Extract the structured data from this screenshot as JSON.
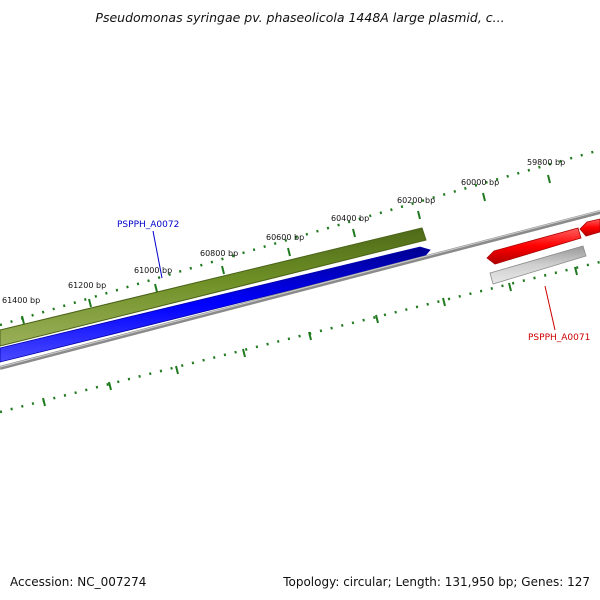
{
  "header": {
    "title": "Pseudomonas syringae pv. phaseolicola 1448A large plasmid, c..."
  },
  "footer": {
    "accession_label": "Accession:",
    "accession_value": "NC_007274",
    "topology_label": "Topology:",
    "topology_value": "circular;",
    "length_label": "Length:",
    "length_value": "131,950 bp;",
    "genes_label": "Genes:",
    "genes_value": "127"
  },
  "ruler": {
    "tick_unit": "bp",
    "labels": [
      "59800 bp",
      "60000 bp",
      "60200 bp",
      "60400 bp",
      "60600 bp",
      "60800 bp",
      "61000 bp",
      "61200 bp",
      "61400 bp"
    ]
  },
  "genes": [
    {
      "id": "PSPPH_A0072",
      "color": "#0000cc"
    },
    {
      "id": "PSPPH_A0071",
      "color": "#cc0000"
    }
  ],
  "colors": {
    "ruler_ticks": "#1f7a1f",
    "outer_feature": "#6b8e23",
    "forward_cds": "#0000ff",
    "reverse_cds": "#ff0000",
    "backbone": "#888888"
  }
}
